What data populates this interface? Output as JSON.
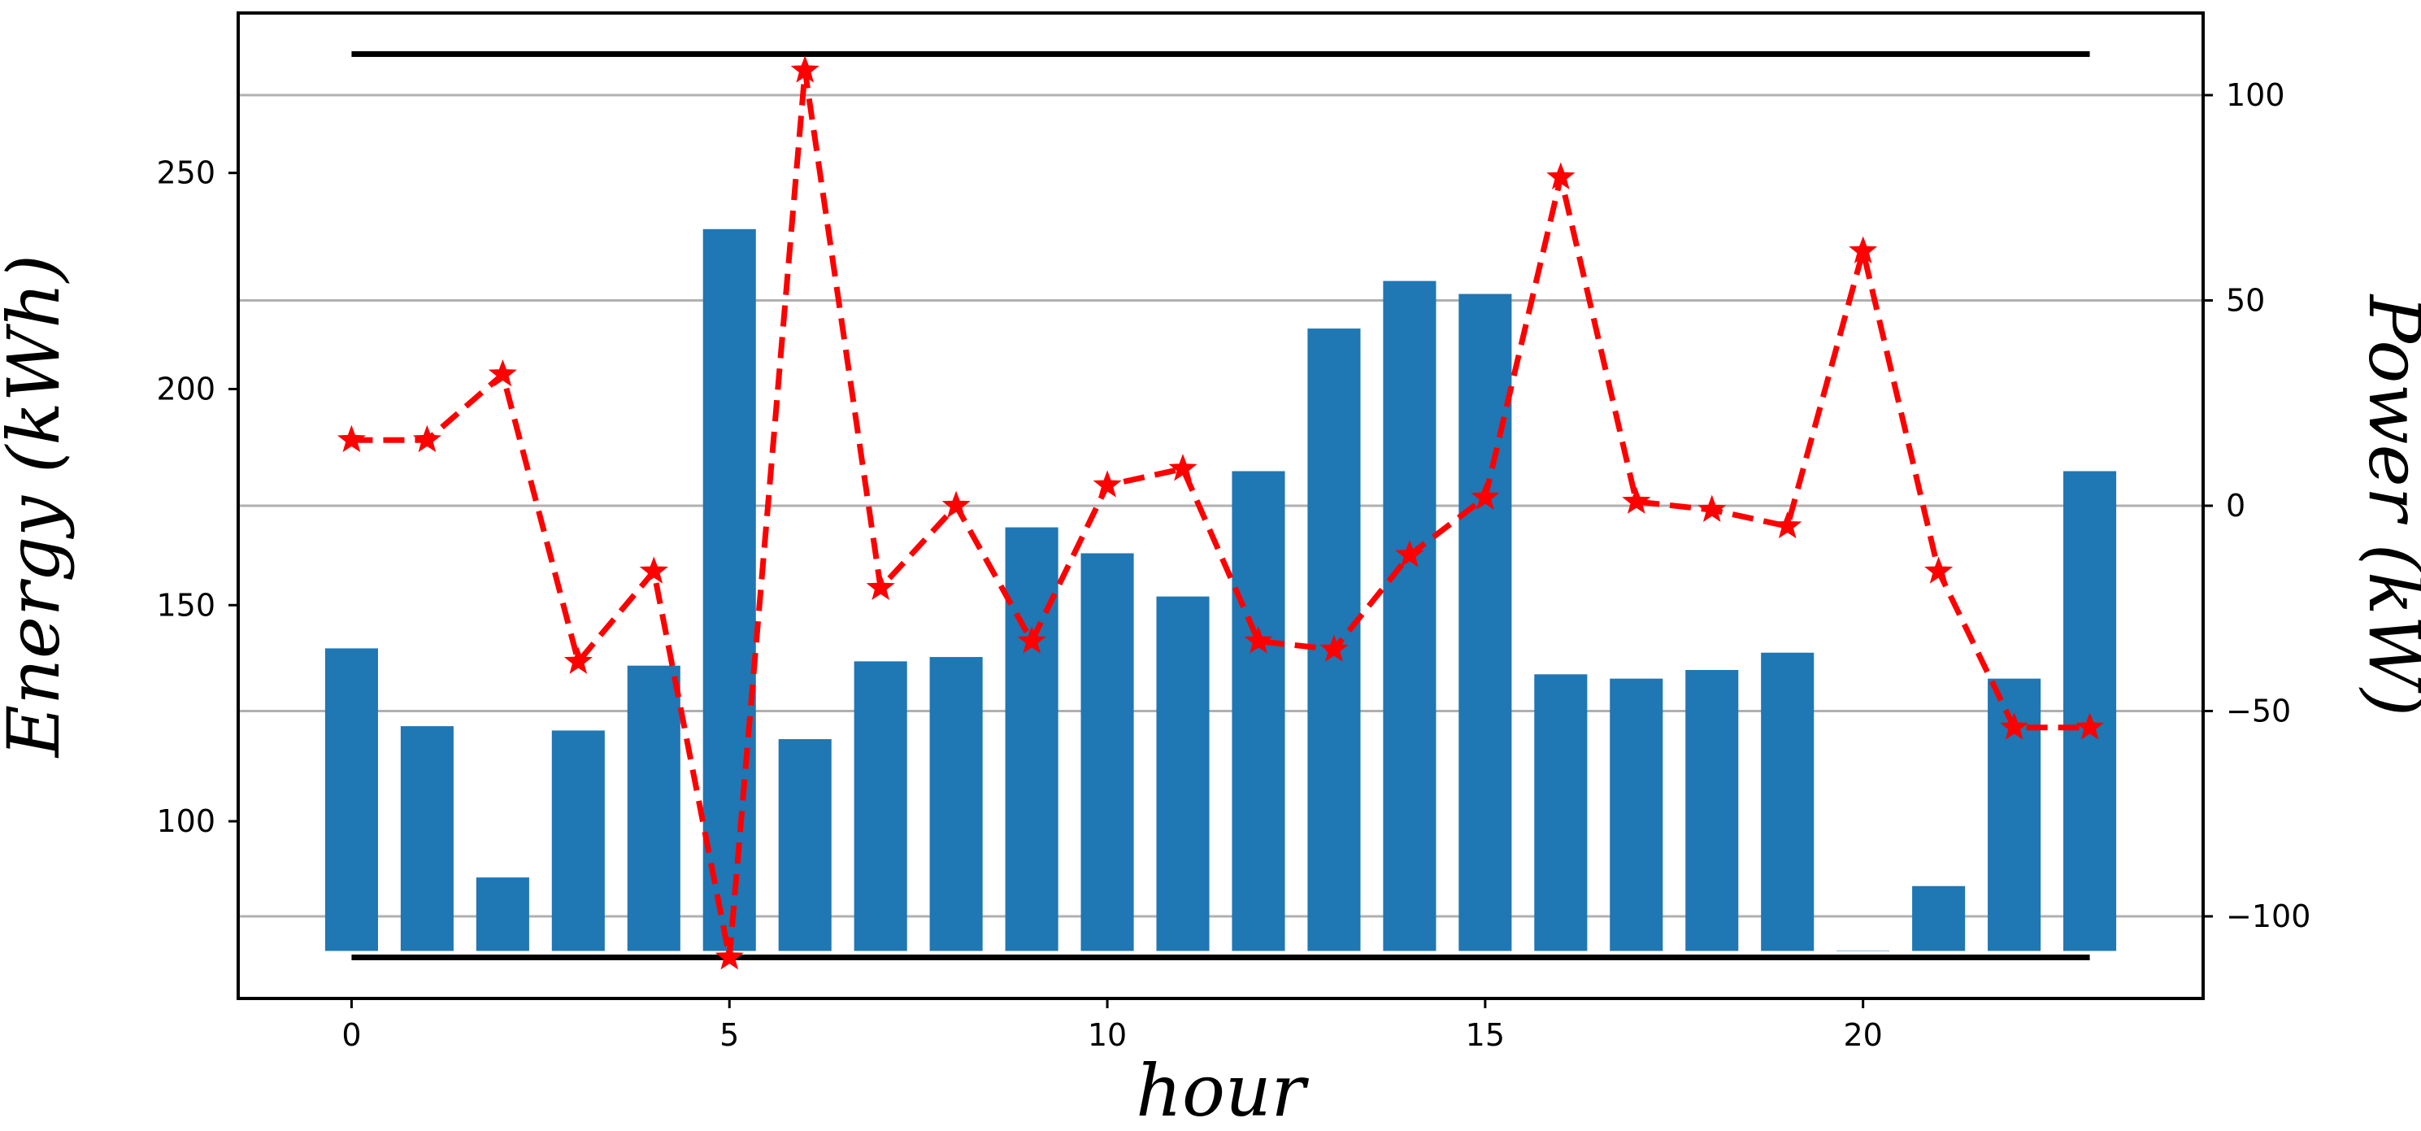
{
  "chart_data": {
    "type": "bar",
    "xlabel": "hour",
    "ylabel": "Energy (kWh)",
    "y2label": "Power (kW)",
    "x": [
      0,
      1,
      2,
      3,
      4,
      5,
      6,
      7,
      8,
      9,
      10,
      11,
      12,
      13,
      14,
      15,
      16,
      17,
      18,
      19,
      20,
      21,
      22,
      23
    ],
    "xlim": [
      -1.5,
      24.5
    ],
    "ylim": [
      59,
      287
    ],
    "y2lim": [
      -120,
      120
    ],
    "xticks": [
      0,
      5,
      10,
      15,
      20
    ],
    "yticks": [
      100,
      150,
      200,
      250
    ],
    "y2ticks": [
      -100,
      -50,
      0,
      50,
      100
    ],
    "y2ticklabels": [
      "−100",
      "−50",
      "0",
      "50",
      "100"
    ],
    "grid": "horizontal, right axis",
    "series": [
      {
        "axis": "left",
        "kind": "bar",
        "color": "#1f77b4",
        "baseline": 70,
        "values": [
          140,
          122,
          87,
          121,
          136,
          237,
          119,
          137,
          138,
          168,
          162,
          152,
          181,
          214,
          225,
          222,
          134,
          133,
          135,
          139,
          70,
          85,
          133,
          181
        ]
      },
      {
        "axis": "right",
        "kind": "line",
        "style": "dashed",
        "marker": "star",
        "color": "#ff0000",
        "values": [
          16,
          16,
          32,
          -38,
          -16,
          -110,
          106,
          -20,
          0,
          -33,
          5,
          9,
          -33,
          -35,
          -12,
          2,
          80,
          1,
          -1,
          -5,
          62,
          -16,
          -54,
          -54
        ]
      }
    ],
    "reference_lines": {
      "axis": "right",
      "color": "#000000",
      "values": [
        110,
        -110
      ]
    }
  }
}
